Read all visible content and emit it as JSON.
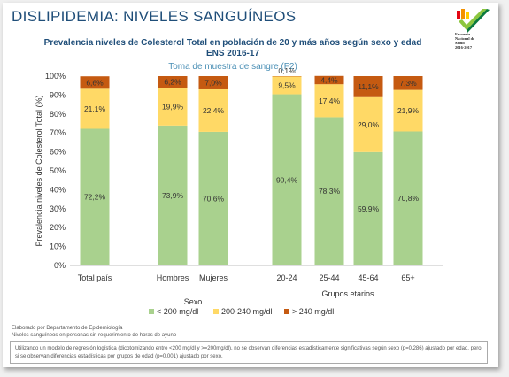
{
  "slide": {
    "title": "DISLIPIDEMIA: NIVELES SANGUÍNEOS",
    "logo_lines": [
      "Encuesta",
      "Nacional de",
      "Salud",
      "2016-2017"
    ],
    "chart_title_line1": "Prevalencia niveles de Colesterol  Total en población de 20 y más años según sexo y edad",
    "chart_title_line2": "ENS  2016-17",
    "chart_subtitle": "Toma de muestra de sangre (F2)",
    "footnote_line1": "Elaborado por Departamento de Epidemiología",
    "footnote_line2": "Niveles sanguíneos en personas sin requerimiento de horas de ayuno",
    "remark": "Utilizando un modelo de regresión logística (dicotomizando entre <200 mg/dl y >=200mg/dl), no se observan diferencias estadísticamente significativas según sexo (p=0,286) ajustado por edad, pero si se observan diferencias estadísticas por grupos de edad (p=0,001) ajustado por sexo.",
    "colors": {
      "bg": "#ffffff",
      "title": "#1f4e79",
      "subtitle": "#4a8fb5"
    }
  },
  "chart_data": {
    "type": "bar",
    "stacked": true,
    "categories": [
      "Total país",
      "Hombres",
      "Mujeres",
      "20-24",
      "25-44",
      "45-64",
      "65+"
    ],
    "groups": [
      {
        "label": "Sexo",
        "categories": [
          "Hombres",
          "Mujeres"
        ]
      },
      {
        "label": "Grupos etarios",
        "categories": [
          "20-24",
          "25-44",
          "45-64",
          "65+"
        ]
      }
    ],
    "series": [
      {
        "name": "< 200 mg/dl",
        "color": "#a9d18e",
        "values": [
          72.2,
          73.9,
          70.6,
          90.4,
          78.3,
          59.9,
          70.8
        ],
        "labels": [
          "72,2%",
          "73,9%",
          "70,6%",
          "90,4%",
          "78,3%",
          "59,9%",
          "70,8%"
        ]
      },
      {
        "name": "200-240 mg/dl",
        "color": "#ffd966",
        "values": [
          21.1,
          19.9,
          22.4,
          9.5,
          17.4,
          29.0,
          21.9
        ],
        "labels": [
          "21,1%",
          "19,9%",
          "22,4%",
          "9,5%",
          "17,4%",
          "29,0%",
          "21,9%"
        ]
      },
      {
        "name": "> 240 mg/dl",
        "color": "#c55a11",
        "values": [
          6.6,
          6.2,
          7.0,
          0.1,
          4.4,
          11.1,
          7.3
        ],
        "labels": [
          "6,6%",
          "6,2%",
          "7,0%",
          "0,1%",
          "4,4%",
          "11,1%",
          "7,3%"
        ]
      }
    ],
    "ylabel": "Prevalencia niveles de Colesterol  Total  (%)",
    "ylim": [
      0,
      100
    ],
    "yticks": [
      "0%",
      "10%",
      "20%",
      "30%",
      "40%",
      "50%",
      "60%",
      "70%",
      "80%",
      "90%",
      "100%"
    ],
    "grid": false,
    "legend": "bottom"
  }
}
